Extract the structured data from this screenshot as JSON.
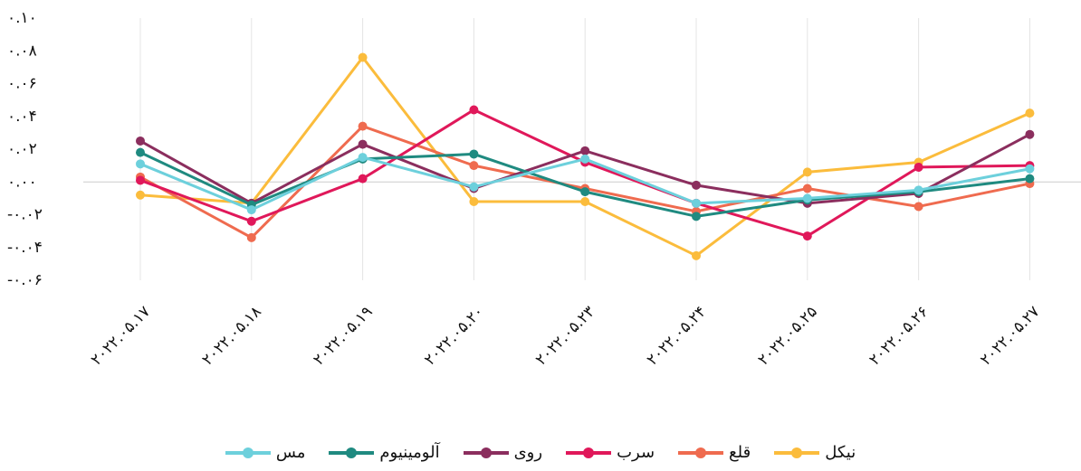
{
  "chart_data": {
    "type": "line",
    "categories": [
      "۲۰۲۲.۰۵.۱۷",
      "۲۰۲۲.۰۵.۱۸",
      "۲۰۲۲.۰۵.۱۹",
      "۲۰۲۲.۰۵.۲۰",
      "۲۰۲۲.۰۵.۲۳",
      "۲۰۲۲.۰۵.۲۴",
      "۲۰۲۲.۰۵.۲۵",
      "۲۰۲۲.۰۵.۲۶",
      "۲۰۲۲.۰۵.۲۷"
    ],
    "series": [
      {
        "name": "نیکل",
        "color": "#fbbc3c",
        "values": [
          -0.008,
          -0.013,
          0.076,
          -0.012,
          -0.012,
          -0.045,
          0.006,
          0.012,
          0.042
        ]
      },
      {
        "name": "قلع",
        "color": "#ef6b4f",
        "values": [
          0.003,
          -0.034,
          0.034,
          0.01,
          -0.004,
          -0.018,
          -0.004,
          -0.015,
          -0.001
        ]
      },
      {
        "name": "سرب",
        "color": "#e0185a",
        "values": [
          0.001,
          -0.024,
          0.002,
          0.044,
          0.012,
          -0.013,
          -0.033,
          0.009,
          0.01
        ]
      },
      {
        "name": "روی",
        "color": "#8b2e5e",
        "values": [
          0.025,
          -0.013,
          0.023,
          -0.004,
          0.019,
          -0.002,
          -0.013,
          -0.007,
          0.029
        ]
      },
      {
        "name": "آلومینیوم",
        "color": "#1f8a80",
        "values": [
          0.018,
          -0.014,
          0.014,
          0.017,
          -0.006,
          -0.021,
          -0.011,
          -0.006,
          0.002
        ]
      },
      {
        "name": "مس",
        "color": "#6dd0dc",
        "values": [
          0.011,
          -0.017,
          0.015,
          -0.003,
          0.014,
          -0.013,
          -0.01,
          -0.005,
          0.008
        ]
      }
    ],
    "ylim": [
      -0.06,
      0.1
    ],
    "yticks": [
      {
        "value": -0.06,
        "label": "-۰.۰۶"
      },
      {
        "value": -0.04,
        "label": "-۰.۰۴"
      },
      {
        "value": -0.02,
        "label": "-۰.۰۲"
      },
      {
        "value": 0,
        "label": "۰.۰۰"
      },
      {
        "value": 0.02,
        "label": "۰.۰۲"
      },
      {
        "value": 0.04,
        "label": "۰.۰۴"
      },
      {
        "value": 0.06,
        "label": "۰.۰۶"
      },
      {
        "value": 0.08,
        "label": "۰.۰۸"
      },
      {
        "value": 0.1,
        "label": "۰.۱۰"
      }
    ],
    "grid": true,
    "legend": "bottom"
  }
}
